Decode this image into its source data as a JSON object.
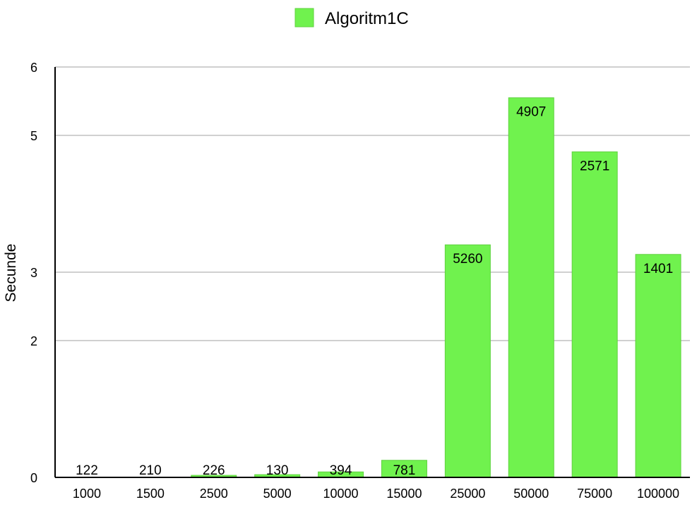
{
  "chart_data": {
    "type": "bar",
    "ylabel": "Secunde",
    "ylim": [
      0,
      6
    ],
    "yticks": [
      0,
      2,
      3,
      5,
      6
    ],
    "grid": true,
    "legend_position": "top-center",
    "categories": [
      "1000",
      "1500",
      "2500",
      "5000",
      "10000",
      "15000",
      "25000",
      "50000",
      "75000",
      "100000"
    ],
    "series": [
      {
        "name": "Algoritm1C",
        "color": "#70f24e",
        "values": [
          0.0,
          0.0,
          0.03,
          0.04,
          0.08,
          0.25,
          3.4,
          5.55,
          4.76,
          3.26
        ],
        "data_labels": [
          "122",
          "210",
          "226",
          "130",
          "394",
          "781",
          "5260",
          "4907",
          "2571",
          "1401"
        ]
      }
    ]
  }
}
